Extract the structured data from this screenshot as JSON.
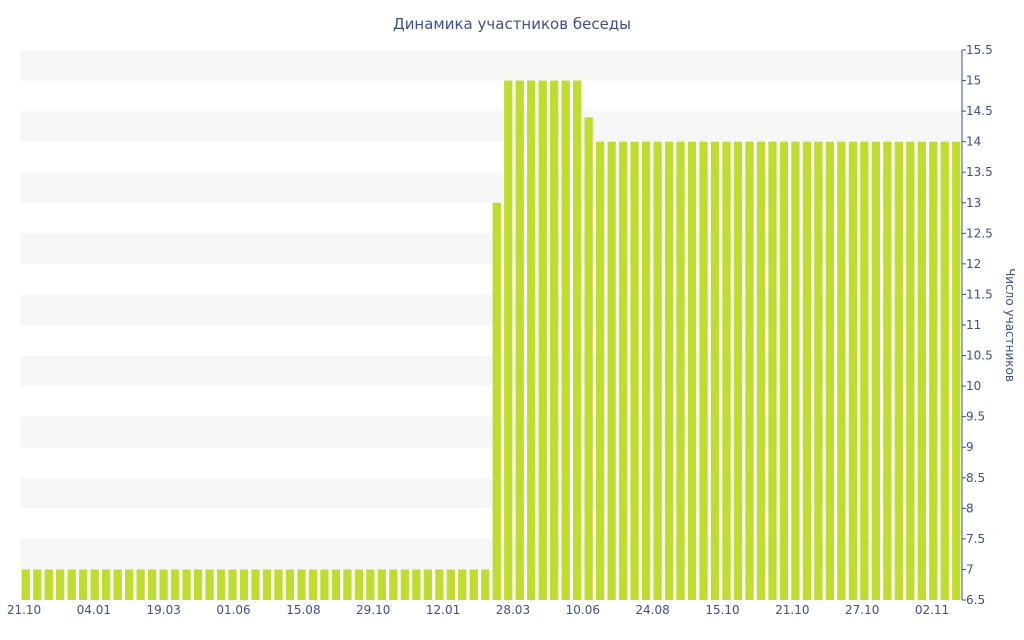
{
  "chart_data": {
    "type": "bar",
    "title": "Динамика участников беседы",
    "ylabel": "Число участников",
    "xlabel": "",
    "ylim": [
      6.5,
      15.5
    ],
    "y_ticks": [
      "6.5",
      "7",
      "7.5",
      "8",
      "8.5",
      "9",
      "9.5",
      "10",
      "10.5",
      "11",
      "11.5",
      "12",
      "12.5",
      "13",
      "13.5",
      "14",
      "14.5",
      "15",
      "15.5"
    ],
    "x_tick_labels": [
      "21.10",
      "04.01",
      "19.03",
      "01.06",
      "15.08",
      "29.10",
      "12.01",
      "28.03",
      "10.06",
      "24.08",
      "15.10",
      "21.10",
      "27.10",
      "02.11"
    ],
    "grid": "horizontal bands",
    "bar_color": "#bedd2e",
    "band_color": "#f7f7f7",
    "values": [
      7,
      7,
      7,
      7,
      7,
      7,
      7,
      7,
      7,
      7,
      7,
      7,
      7,
      7,
      7,
      7,
      7,
      7,
      7,
      7,
      7,
      7,
      7,
      7,
      7,
      7,
      7,
      7,
      7,
      7,
      7,
      7,
      7,
      7,
      7,
      7,
      7,
      7,
      7,
      7,
      7,
      13,
      15,
      15,
      15,
      15,
      15,
      15,
      15,
      14.4,
      14,
      14,
      14,
      14,
      14,
      14,
      14,
      14,
      14,
      14,
      14,
      14,
      14,
      14,
      14,
      14,
      14,
      14,
      14,
      14,
      14,
      14,
      14,
      14,
      14,
      14,
      14,
      14,
      14,
      14,
      14,
      14
    ]
  }
}
